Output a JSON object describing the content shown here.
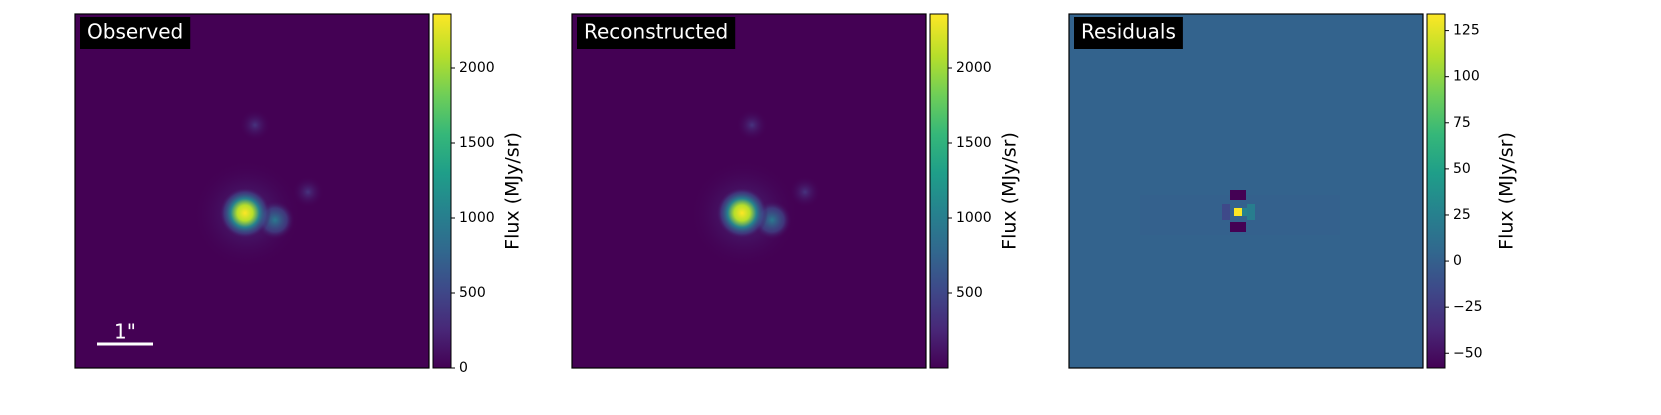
{
  "chart_data": [
    {
      "type": "image",
      "title": "Observed",
      "scalebar_label": "1\"",
      "colormap": "viridis",
      "colorbar_label": "Flux (MJy/sr)",
      "clim": [
        0,
        2360
      ],
      "cticks": [
        0,
        500,
        1000,
        1500,
        2000
      ]
    },
    {
      "type": "image",
      "title": "Reconstructed",
      "colormap": "viridis",
      "colorbar_label": "Flux (MJy/sr)",
      "clim": [
        0,
        2360
      ],
      "cticks": [
        500,
        1000,
        1500,
        2000
      ]
    },
    {
      "type": "image",
      "title": "Residuals",
      "colormap": "viridis",
      "colorbar_label": "Flux (MJy/sr)",
      "clim": [
        -58,
        134
      ],
      "cticks": [
        {
          "value": -50,
          "label": "−50"
        },
        {
          "value": -25,
          "label": "−25"
        },
        0,
        25,
        50,
        75,
        100,
        125
      ]
    }
  ]
}
